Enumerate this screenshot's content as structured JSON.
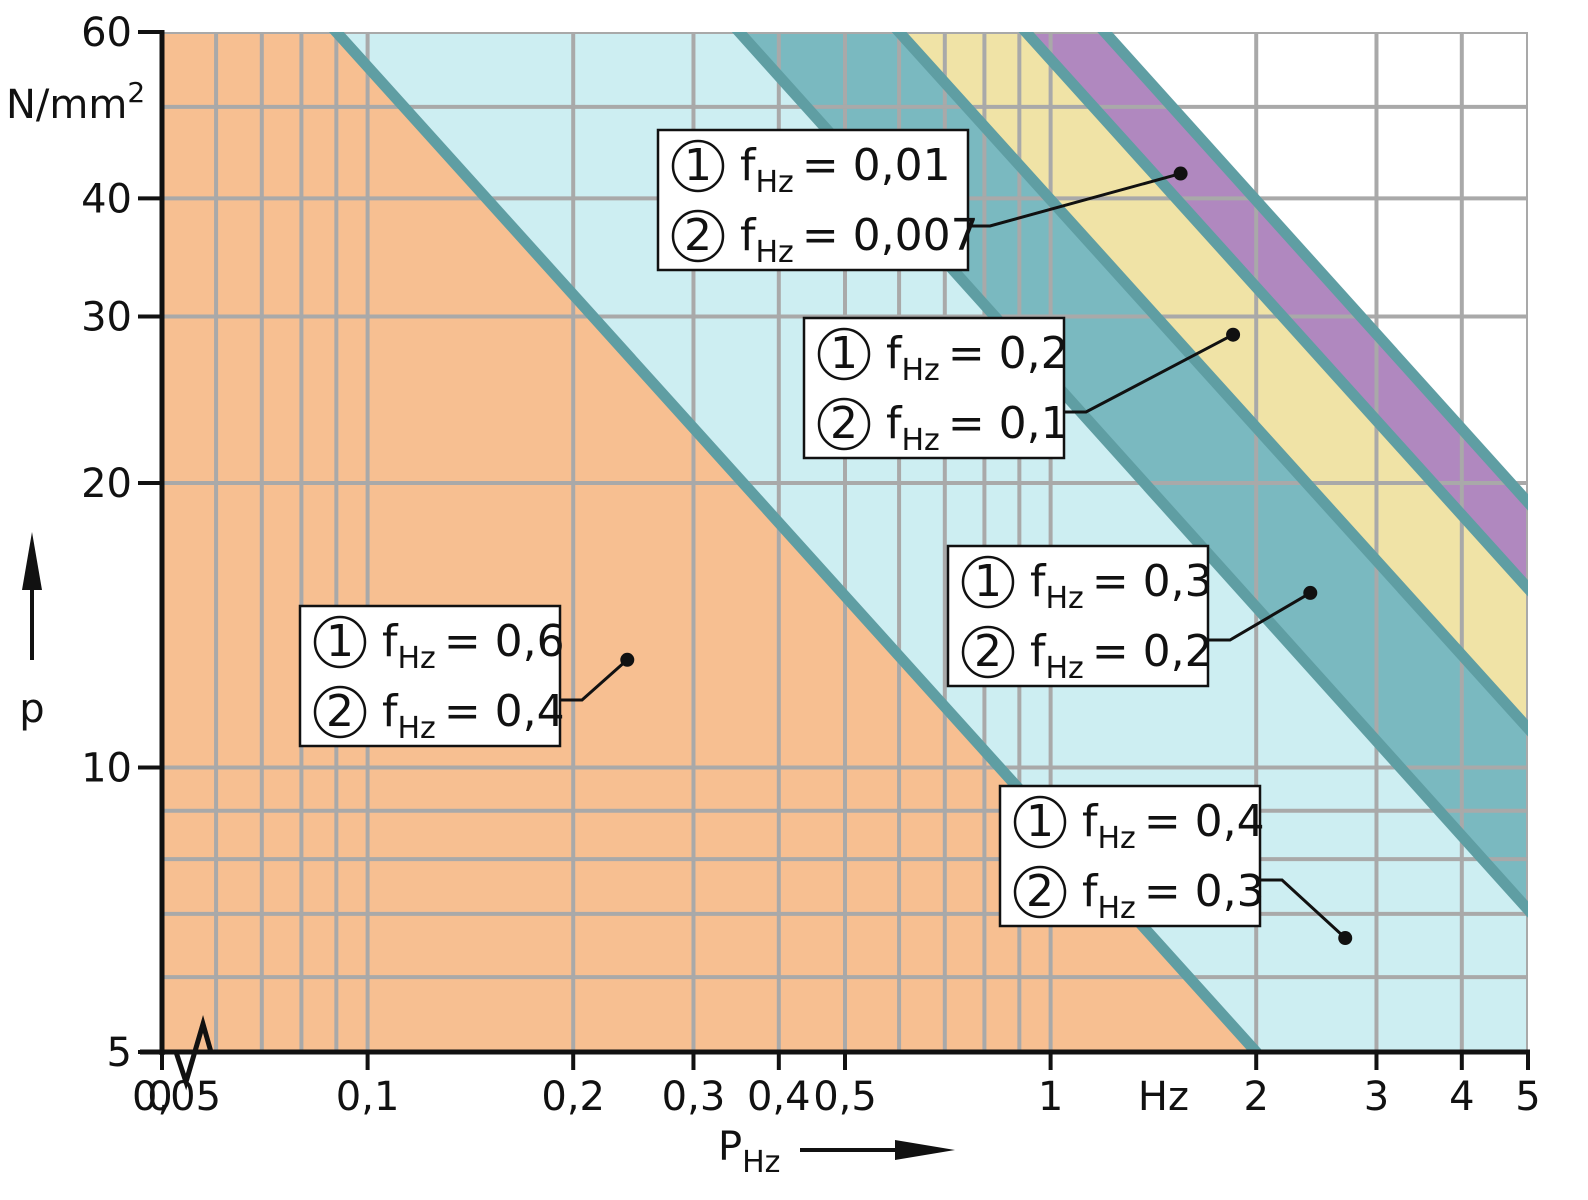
{
  "chart_data": {
    "type": "area",
    "x_scale": "log",
    "y_scale": "log",
    "xlim": [
      0.05,
      5
    ],
    "ylim": [
      5,
      60
    ],
    "grid": true,
    "xlabel": "P",
    "xlabel_sub": "Hz",
    "ylabel": "p",
    "y_unit": "N/mm2",
    "x_unit": "Hz",
    "x_break_label": "0",
    "x_ticks": [
      {
        "value": 0.05,
        "label": "0,05"
      },
      {
        "value": 0.1,
        "label": "0,1"
      },
      {
        "value": 0.2,
        "label": "0,2"
      },
      {
        "value": 0.3,
        "label": "0,3"
      },
      {
        "value": 0.4,
        "label": "0,4"
      },
      {
        "value": 0.5,
        "label": "0,5"
      },
      {
        "value": 1,
        "label": "1"
      },
      {
        "value": 2,
        "label": "2"
      },
      {
        "value": 3,
        "label": "3"
      },
      {
        "value": 4,
        "label": "4"
      },
      {
        "value": 5,
        "label": "5"
      }
    ],
    "y_ticks": [
      {
        "value": 5,
        "label": "5"
      },
      {
        "value": 10,
        "label": "10"
      },
      {
        "value": 20,
        "label": "20"
      },
      {
        "value": 30,
        "label": "30"
      },
      {
        "value": 40,
        "label": "40"
      },
      {
        "value": 60,
        "label": "60"
      }
    ],
    "x_grid": [
      0.05,
      0.06,
      0.07,
      0.08,
      0.09,
      0.1,
      0.2,
      0.3,
      0.4,
      0.5,
      0.6,
      0.7,
      0.8,
      0.9,
      1,
      2,
      3,
      4,
      5
    ],
    "y_grid": [
      5,
      6,
      7,
      8,
      9,
      10,
      20,
      30,
      40,
      50,
      60
    ],
    "boundaries": [
      {
        "x_at_top": 0.09,
        "x_at_bottom": 2.0
      },
      {
        "x_at_top": 0.35,
        "x_at_bottom": 7.7
      },
      {
        "x_at_top": 0.6,
        "x_at_bottom": 13.4
      },
      {
        "x_at_top": 0.92,
        "x_at_bottom": 20.5
      },
      {
        "x_at_top": 1.2,
        "x_at_bottom": 26.5
      }
    ],
    "regions": [
      {
        "color": "#f7bf91",
        "label_1": "f",
        "label_1_sub": "Hz",
        "label_1_value": "= 0,6",
        "label_2": "f",
        "label_2_sub": "Hz",
        "label_2_value": "= 0,4",
        "marker": [
          0.24,
          13
        ]
      },
      {
        "color": "#cdeef2",
        "label_1": "f",
        "label_1_sub": "Hz",
        "label_1_value": "= 0,4",
        "label_2": "f",
        "label_2_sub": "Hz",
        "label_2_value": "= 0,3",
        "marker": [
          2.7,
          6.6
        ]
      },
      {
        "color": "#7ab9c0",
        "label_1": "f",
        "label_1_sub": "Hz",
        "label_1_value": "= 0,3",
        "label_2": "f",
        "label_2_sub": "Hz",
        "label_2_value": "= 0,2",
        "marker": [
          2.4,
          15.3
        ]
      },
      {
        "color": "#f0e3a6",
        "label_1": "f",
        "label_1_sub": "Hz",
        "label_1_value": "= 0,2",
        "label_2": "f",
        "label_2_sub": "Hz",
        "label_2_value": "= 0,1",
        "marker": [
          1.85,
          28.7
        ]
      },
      {
        "color": "#b088bf",
        "label_1": "f",
        "label_1_sub": "Hz",
        "label_1_value": "= 0,01",
        "label_2": "f",
        "label_2_sub": "Hz",
        "label_2_value": "= 0,007",
        "marker": [
          1.55,
          42.5
        ]
      }
    ],
    "circle_labels": [
      "1",
      "2"
    ],
    "line_color": "#5f9ea3"
  }
}
